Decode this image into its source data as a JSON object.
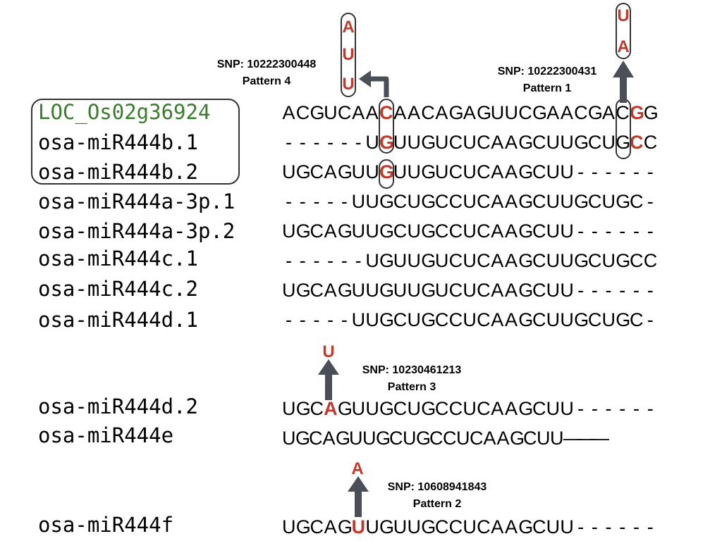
{
  "sequences": [
    {
      "name": "LOC_Os02g36924",
      "seq": "ACGUCAACAACAGAGUUCGAACGACGG",
      "name_color": "#3a7d2c",
      "highlight": [
        7,
        25
      ]
    },
    {
      "name": "osa-miR444b.1",
      "seq": "------UGUUGUCUCAAGCUUGCUGCC",
      "highlight": [
        7,
        25
      ]
    },
    {
      "name": "osa-miR444b.2",
      "seq": "UGCAGUUGUUGUCUCAAGCUU------",
      "highlight": [
        7
      ]
    },
    {
      "name": "osa-miR444a-3p.1",
      "seq": "-----UUGCUGCCUCAAGCUUGCUGC-",
      "highlight": []
    },
    {
      "name": "osa-miR444a-3p.2",
      "seq": "UGCAGUUGCUGCCUCAAGCUU------",
      "highlight": []
    },
    {
      "name": "osa-miR444c.1",
      "seq": "------UGUUGUCUCAAGCUUGCUGCC",
      "highlight": []
    },
    {
      "name": "osa-miR444c.2",
      "seq": "UGCAGUUGUUGUCUCAAGCUU------",
      "highlight": []
    },
    {
      "name": "osa-miR444d.1",
      "seq": "-----UUGCUGCCUCAAGCUUGCUGC-",
      "highlight": []
    },
    {
      "name": "osa-miR444d.2",
      "seq": "UGCAGUUGCUGCCUCAAGCUU------",
      "highlight": [
        3
      ]
    },
    {
      "name": "osa-miR444e",
      "seq": "UGCAGUUGCUGCCUCAAGCUU———",
      "highlight": []
    },
    {
      "name": "osa-miR444f",
      "seq": "UGCAGUUGUUGCCUCAAGCUU------",
      "highlight": [
        5
      ]
    }
  ],
  "snps": [
    {
      "snp": "SNP: 10222300448",
      "pattern": "Pattern 4",
      "alleles": [
        "A",
        "U",
        "U"
      ]
    },
    {
      "snp": "SNP: 10222300431",
      "pattern": "Pattern 1",
      "alleles": [
        "U",
        "A"
      ]
    },
    {
      "snp": "SNP: 10230461213",
      "pattern": "Pattern 3",
      "alleles": [
        "U"
      ]
    },
    {
      "snp": "SNP: 10608941843",
      "pattern": "Pattern 2",
      "alleles": [
        "A"
      ]
    }
  ],
  "colors": {
    "highlight": "#c0392b",
    "arrow": "#4a4f57",
    "outline": "#333333",
    "target_name": "#3a7d2c"
  },
  "icons": [
    "up-arrow-icon",
    "bent-arrow-icon"
  ]
}
